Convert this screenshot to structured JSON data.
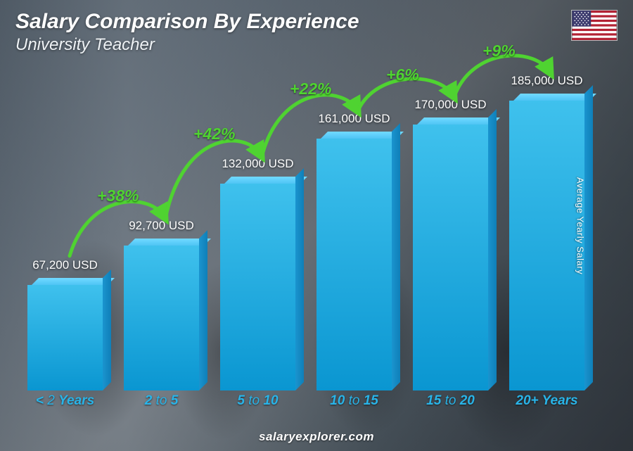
{
  "header": {
    "title": "Salary Comparison By Experience",
    "title_fontsize": 30,
    "title_color": "#ffffff",
    "subtitle": "University Teacher",
    "subtitle_fontsize": 24,
    "subtitle_color": "#eef2f5",
    "flag_country": "US"
  },
  "y_axis_label": "Average Yearly Salary",
  "footer_text": "salaryexplorer.com",
  "chart": {
    "type": "bar",
    "bar_color_top": "#3fc1ed",
    "bar_color_bottom": "#0a96d1",
    "bar_side_color": "#0f7fb8",
    "bar_top_face_color": "#5bc9ef",
    "value_label_color": "#ffffff",
    "value_label_fontsize": 17,
    "x_label_color": "#29b4e8",
    "x_label_fontsize": 19,
    "arc_color": "#4fd331",
    "arc_label_color": "#4fd331",
    "arc_label_fontsize": 23,
    "max_value": 200000,
    "categories": [
      {
        "label_prefix": "<",
        "label_main": " 2 ",
        "label_suffix": "Years"
      },
      {
        "label_prefix": "2 ",
        "label_main": "to",
        "label_suffix": " 5"
      },
      {
        "label_prefix": "5 ",
        "label_main": "to",
        "label_suffix": " 10"
      },
      {
        "label_prefix": "10 ",
        "label_main": "to",
        "label_suffix": " 15"
      },
      {
        "label_prefix": "15 ",
        "label_main": "to",
        "label_suffix": " 20"
      },
      {
        "label_prefix": "20+ ",
        "label_main": "",
        "label_suffix": "Years"
      }
    ],
    "values": [
      67200,
      92700,
      132000,
      161000,
      170000,
      185000
    ],
    "value_labels": [
      "67,200 USD",
      "92,700 USD",
      "132,000 USD",
      "161,000 USD",
      "170,000 USD",
      "185,000 USD"
    ],
    "deltas": [
      "+38%",
      "+42%",
      "+22%",
      "+6%",
      "+9%"
    ]
  },
  "colors": {
    "background_overlay": "#3e4850",
    "text_shadow": "rgba(0,0,0,0.6)"
  }
}
